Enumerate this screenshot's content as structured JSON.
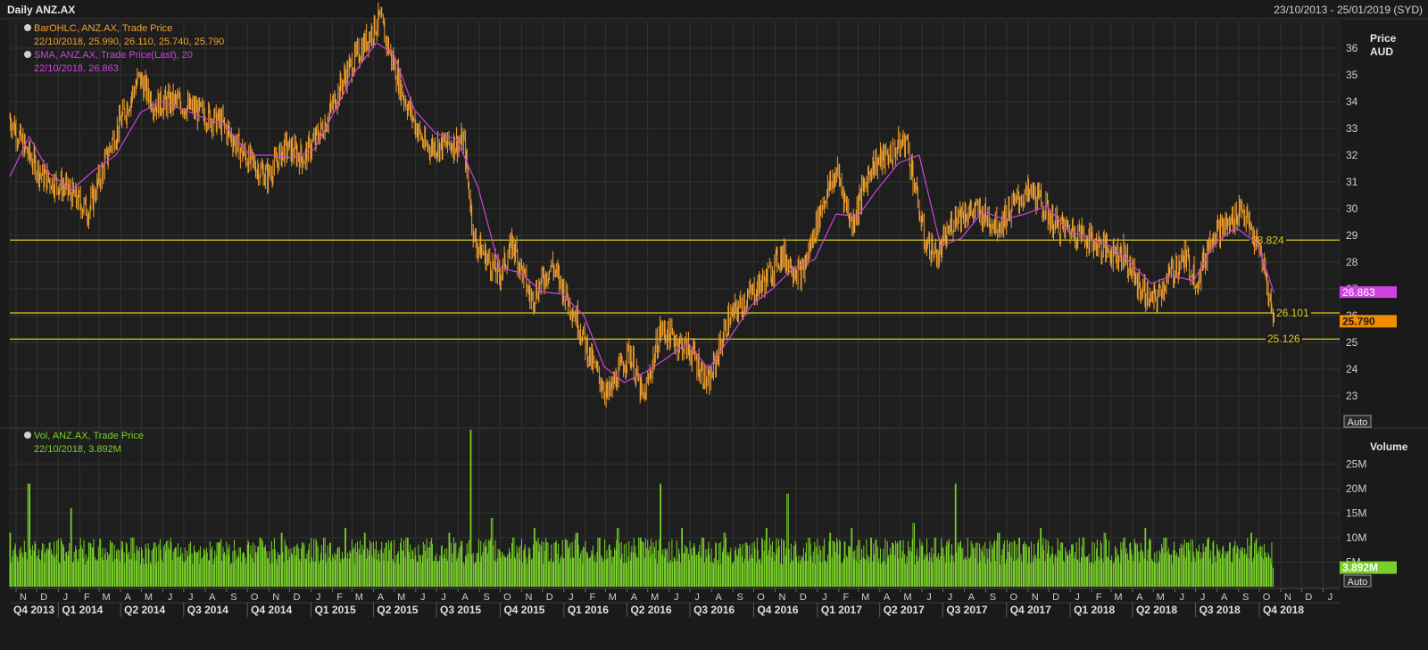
{
  "header": {
    "title": "Daily ANZ.AX",
    "range": "23/10/2013 - 25/01/2019 (SYD)"
  },
  "price_panel": {
    "legend": [
      {
        "name": "BarOHLC, ANZ.AX, Trade Price",
        "value": "22/10/2018, 25.990, 26.110, 25.740, 25.790",
        "color": "#f0a030"
      },
      {
        "name": "SMA, ANZ.AX, Trade Price(Last),  20",
        "value": "22/10/2018, 26.863",
        "color": "#cc44dd"
      }
    ],
    "axis_title": [
      "Price",
      "AUD"
    ],
    "auto_label": "Auto",
    "last_price_tag": {
      "text": "25.790",
      "value": 25.79,
      "color": "#f08c00"
    },
    "sma_tag": {
      "text": "26.863",
      "value": 26.863,
      "color": "#cc44dd"
    },
    "hlines": [
      {
        "value": 28.824,
        "text": "28.824"
      },
      {
        "value": 26.101,
        "text": "26.101"
      },
      {
        "value": 25.126,
        "text": "25.126"
      }
    ]
  },
  "volume_panel": {
    "legend": {
      "name": "Vol, ANZ.AX, Trade Price",
      "value": "22/10/2018, 3.892M",
      "color": "#7ad02a"
    },
    "axis_title": "Volume",
    "auto_label": "Auto",
    "last_volume_tag": {
      "text": "3.892M",
      "value": 3.892,
      "color": "#7ad02a"
    }
  },
  "colors": {
    "background": "#1a1a1a",
    "price_bars": "#f0a030",
    "sma": "#cc44dd",
    "volume": "#7ad02a",
    "hline": "#d8cc20",
    "grid": "#333333",
    "text": "#cfcfcf"
  },
  "chart_data": [
    {
      "type": "line",
      "title": "Daily ANZ.AX",
      "ylabel": "Price AUD",
      "ylim": [
        21.8,
        37.0
      ],
      "yticks": [
        23,
        24,
        25,
        26,
        27,
        28,
        29,
        30,
        31,
        32,
        33,
        34,
        35,
        36
      ],
      "grid": true,
      "series": [
        {
          "name": "BarOHLC, ANZ.AX, Trade Price",
          "style": "ohlc",
          "x": [
            "2013-10-23",
            "2013-11-15",
            "2013-12-10",
            "2014-01-10",
            "2014-02-14",
            "2014-03-20",
            "2014-04-28",
            "2014-05-20",
            "2014-06-20",
            "2014-07-25",
            "2014-08-25",
            "2014-09-30",
            "2014-10-30",
            "2014-11-25",
            "2014-12-22",
            "2015-01-20",
            "2015-02-20",
            "2015-03-20",
            "2015-04-10",
            "2015-05-15",
            "2015-06-15",
            "2015-07-15",
            "2015-08-10",
            "2015-08-25",
            "2015-09-30",
            "2015-10-20",
            "2015-11-15",
            "2015-12-15",
            "2016-01-20",
            "2016-02-10",
            "2016-03-05",
            "2016-04-05",
            "2016-04-25",
            "2016-05-20",
            "2016-06-15",
            "2016-07-05",
            "2016-07-28",
            "2016-08-25",
            "2016-09-20",
            "2016-10-20",
            "2016-11-10",
            "2016-12-10",
            "2017-01-10",
            "2017-01-30",
            "2017-02-20",
            "2017-03-20",
            "2017-04-20",
            "2017-05-10",
            "2017-06-05",
            "2017-06-25",
            "2017-07-20",
            "2017-08-20",
            "2017-09-20",
            "2017-10-20",
            "2017-11-10",
            "2017-12-10",
            "2018-01-15",
            "2018-02-20",
            "2018-03-20",
            "2018-04-10",
            "2018-05-01",
            "2018-05-25",
            "2018-06-15",
            "2018-07-05",
            "2018-07-25",
            "2018-08-20",
            "2018-09-05",
            "2018-09-25",
            "2018-10-05",
            "2018-10-22"
          ],
          "close": [
            33.4,
            32.2,
            31.2,
            30.8,
            29.9,
            32.5,
            34.9,
            33.9,
            34.0,
            33.6,
            33.2,
            31.9,
            31.2,
            32.3,
            31.9,
            33.1,
            35.0,
            36.2,
            37.1,
            34.2,
            32.3,
            32.4,
            32.5,
            28.8,
            27.5,
            28.7,
            26.6,
            27.9,
            25.9,
            24.3,
            23.0,
            24.7,
            22.8,
            25.5,
            25.0,
            24.6,
            23.4,
            25.8,
            26.6,
            27.4,
            28.3,
            27.5,
            30.3,
            31.4,
            29.4,
            31.6,
            32.1,
            32.6,
            28.8,
            28.2,
            29.8,
            29.9,
            29.4,
            30.4,
            30.6,
            29.4,
            29.1,
            28.5,
            28.3,
            27.1,
            26.5,
            27.5,
            28.2,
            27.3,
            29.1,
            29.4,
            30.1,
            28.8,
            28.2,
            25.79
          ]
        },
        {
          "name": "SMA, ANZ.AX, Trade Price(Last),  20",
          "x": [
            "2013-10-23",
            "2013-11-20",
            "2013-12-20",
            "2014-01-20",
            "2014-02-20",
            "2014-03-25",
            "2014-04-30",
            "2014-05-30",
            "2014-06-30",
            "2014-07-30",
            "2014-08-30",
            "2014-10-05",
            "2014-11-05",
            "2014-12-05",
            "2015-01-05",
            "2015-02-05",
            "2015-03-05",
            "2015-04-05",
            "2015-04-30",
            "2015-05-30",
            "2015-06-30",
            "2015-07-30",
            "2015-08-30",
            "2015-09-30",
            "2015-10-30",
            "2015-11-30",
            "2015-12-30",
            "2016-01-30",
            "2016-02-28",
            "2016-03-28",
            "2016-04-28",
            "2016-05-28",
            "2016-06-28",
            "2016-07-28",
            "2016-08-28",
            "2016-09-28",
            "2016-10-28",
            "2016-11-28",
            "2016-12-28",
            "2017-01-28",
            "2017-02-28",
            "2017-03-28",
            "2017-04-28",
            "2017-05-28",
            "2017-06-28",
            "2017-07-28",
            "2017-08-28",
            "2017-09-28",
            "2017-10-28",
            "2017-11-28",
            "2017-12-28",
            "2018-01-28",
            "2018-02-28",
            "2018-03-28",
            "2018-04-28",
            "2018-05-28",
            "2018-06-28",
            "2018-07-28",
            "2018-08-28",
            "2018-09-28",
            "2018-10-22"
          ],
          "values": [
            31.2,
            32.7,
            31.3,
            30.7,
            31.4,
            32.0,
            33.6,
            34.0,
            33.7,
            33.4,
            33.1,
            32.0,
            32.0,
            31.9,
            32.2,
            33.7,
            35.1,
            36.2,
            35.8,
            33.7,
            32.8,
            32.6,
            30.8,
            27.8,
            27.6,
            26.9,
            26.8,
            26.0,
            24.1,
            23.5,
            23.9,
            24.4,
            25.0,
            24.0,
            25.2,
            26.4,
            27.0,
            27.8,
            28.1,
            29.8,
            29.7,
            30.7,
            31.7,
            32.0,
            28.6,
            28.9,
            29.9,
            29.6,
            29.8,
            30.1,
            29.2,
            28.9,
            28.6,
            28.0,
            27.2,
            27.5,
            27.3,
            28.7,
            29.3,
            28.7,
            26.863
          ]
        }
      ]
    },
    {
      "type": "bar",
      "title": "Vol, ANZ.AX, Trade Price",
      "ylabel": "Volume",
      "ylim": [
        0,
        32
      ],
      "yticks": [
        "5M",
        "10M",
        "15M",
        "20M",
        "25M"
      ],
      "ytick_values": [
        5,
        10,
        15,
        20,
        25
      ],
      "grid": true,
      "series": [
        {
          "name": "Vol, ANZ.AX, Trade Price",
          "x": [
            "2013-10-23",
            "2013-11-20",
            "2013-12-20",
            "2014-01-20",
            "2014-02-20",
            "2014-03-20",
            "2014-04-20",
            "2014-05-20",
            "2014-06-20",
            "2014-07-20",
            "2014-08-20",
            "2014-09-20",
            "2014-10-20",
            "2014-11-20",
            "2014-12-20",
            "2015-01-20",
            "2015-02-20",
            "2015-03-20",
            "2015-04-20",
            "2015-05-20",
            "2015-06-20",
            "2015-07-20",
            "2015-08-20",
            "2015-09-20",
            "2015-10-20",
            "2015-11-20",
            "2015-12-20",
            "2016-01-20",
            "2016-02-20",
            "2016-03-20",
            "2016-04-20",
            "2016-05-20",
            "2016-06-20",
            "2016-07-20",
            "2016-08-20",
            "2016-09-20",
            "2016-10-20",
            "2016-11-20",
            "2016-12-20",
            "2017-01-20",
            "2017-02-20",
            "2017-03-20",
            "2017-04-20",
            "2017-05-20",
            "2017-06-20",
            "2017-07-20",
            "2017-08-20",
            "2017-09-20",
            "2017-10-20",
            "2017-11-20",
            "2017-12-20",
            "2018-01-20",
            "2018-02-20",
            "2018-03-20",
            "2018-04-20",
            "2018-05-20",
            "2018-06-20",
            "2018-07-20",
            "2018-08-20",
            "2018-09-20",
            "2018-10-22"
          ],
          "values": [
            11,
            21,
            9,
            16,
            8,
            9,
            10,
            9,
            8,
            7,
            9,
            8,
            10,
            11,
            9,
            10,
            12,
            11,
            9,
            10,
            8,
            11,
            32,
            14,
            10,
            12,
            9,
            11,
            10,
            12,
            10,
            21,
            12,
            10,
            11,
            9,
            12,
            19,
            10,
            11,
            12,
            10,
            9,
            13,
            10,
            21,
            9,
            11,
            10,
            12,
            9,
            10,
            11,
            10,
            12,
            10,
            9,
            10,
            9,
            11,
            3.892
          ]
        }
      ]
    }
  ],
  "x_axis": {
    "month_ticks": [
      {
        "date": "2013-11-01",
        "label": "N"
      },
      {
        "date": "2013-12-01",
        "label": "D"
      },
      {
        "date": "2014-01-01",
        "label": "J"
      },
      {
        "date": "2014-02-01",
        "label": "F"
      },
      {
        "date": "2014-03-01",
        "label": "M"
      },
      {
        "date": "2014-04-01",
        "label": "A"
      },
      {
        "date": "2014-05-01",
        "label": "M"
      },
      {
        "date": "2014-06-01",
        "label": "J"
      },
      {
        "date": "2014-07-01",
        "label": "J"
      },
      {
        "date": "2014-08-01",
        "label": "A"
      },
      {
        "date": "2014-09-01",
        "label": "S"
      },
      {
        "date": "2014-10-01",
        "label": "O"
      },
      {
        "date": "2014-11-01",
        "label": "N"
      },
      {
        "date": "2014-12-01",
        "label": "D"
      },
      {
        "date": "2015-01-01",
        "label": "J"
      },
      {
        "date": "2015-02-01",
        "label": "F"
      },
      {
        "date": "2015-03-01",
        "label": "M"
      },
      {
        "date": "2015-04-01",
        "label": "A"
      },
      {
        "date": "2015-05-01",
        "label": "M"
      },
      {
        "date": "2015-06-01",
        "label": "J"
      },
      {
        "date": "2015-07-01",
        "label": "J"
      },
      {
        "date": "2015-08-01",
        "label": "A"
      },
      {
        "date": "2015-09-01",
        "label": "S"
      },
      {
        "date": "2015-10-01",
        "label": "O"
      },
      {
        "date": "2015-11-01",
        "label": "N"
      },
      {
        "date": "2015-12-01",
        "label": "D"
      },
      {
        "date": "2016-01-01",
        "label": "J"
      },
      {
        "date": "2016-02-01",
        "label": "F"
      },
      {
        "date": "2016-03-01",
        "label": "M"
      },
      {
        "date": "2016-04-01",
        "label": "A"
      },
      {
        "date": "2016-05-01",
        "label": "M"
      },
      {
        "date": "2016-06-01",
        "label": "J"
      },
      {
        "date": "2016-07-01",
        "label": "J"
      },
      {
        "date": "2016-08-01",
        "label": "A"
      },
      {
        "date": "2016-09-01",
        "label": "S"
      },
      {
        "date": "2016-10-01",
        "label": "O"
      },
      {
        "date": "2016-11-01",
        "label": "N"
      },
      {
        "date": "2016-12-01",
        "label": "D"
      },
      {
        "date": "2017-01-01",
        "label": "J"
      },
      {
        "date": "2017-02-01",
        "label": "F"
      },
      {
        "date": "2017-03-01",
        "label": "M"
      },
      {
        "date": "2017-04-01",
        "label": "A"
      },
      {
        "date": "2017-05-01",
        "label": "M"
      },
      {
        "date": "2017-06-01",
        "label": "J"
      },
      {
        "date": "2017-07-01",
        "label": "J"
      },
      {
        "date": "2017-08-01",
        "label": "A"
      },
      {
        "date": "2017-09-01",
        "label": "S"
      },
      {
        "date": "2017-10-01",
        "label": "O"
      },
      {
        "date": "2017-11-01",
        "label": "N"
      },
      {
        "date": "2017-12-01",
        "label": "D"
      },
      {
        "date": "2018-01-01",
        "label": "J"
      },
      {
        "date": "2018-02-01",
        "label": "F"
      },
      {
        "date": "2018-03-01",
        "label": "M"
      },
      {
        "date": "2018-04-01",
        "label": "A"
      },
      {
        "date": "2018-05-01",
        "label": "M"
      },
      {
        "date": "2018-06-01",
        "label": "J"
      },
      {
        "date": "2018-07-01",
        "label": "J"
      },
      {
        "date": "2018-08-01",
        "label": "A"
      },
      {
        "date": "2018-09-01",
        "label": "S"
      },
      {
        "date": "2018-10-01",
        "label": "O"
      },
      {
        "date": "2018-11-01",
        "label": "N"
      },
      {
        "date": "2018-12-01",
        "label": "D"
      },
      {
        "date": "2019-01-01",
        "label": "J"
      }
    ],
    "quarter_labels": [
      {
        "start": "2013-10-01",
        "label": "Q4 2013"
      },
      {
        "start": "2014-01-01",
        "label": "Q1 2014"
      },
      {
        "start": "2014-04-01",
        "label": "Q2 2014"
      },
      {
        "start": "2014-07-01",
        "label": "Q3 2014"
      },
      {
        "start": "2014-10-01",
        "label": "Q4 2014"
      },
      {
        "start": "2015-01-01",
        "label": "Q1 2015"
      },
      {
        "start": "2015-04-01",
        "label": "Q2 2015"
      },
      {
        "start": "2015-07-01",
        "label": "Q3 2015"
      },
      {
        "start": "2015-10-01",
        "label": "Q4 2015"
      },
      {
        "start": "2016-01-01",
        "label": "Q1 2016"
      },
      {
        "start": "2016-04-01",
        "label": "Q2 2016"
      },
      {
        "start": "2016-07-01",
        "label": "Q3 2016"
      },
      {
        "start": "2016-10-01",
        "label": "Q4 2016"
      },
      {
        "start": "2017-01-01",
        "label": "Q1 2017"
      },
      {
        "start": "2017-04-01",
        "label": "Q2 2017"
      },
      {
        "start": "2017-07-01",
        "label": "Q3 2017"
      },
      {
        "start": "2017-10-01",
        "label": "Q4 2017"
      },
      {
        "start": "2018-01-01",
        "label": "Q1 2018"
      },
      {
        "start": "2018-04-01",
        "label": "Q2 2018"
      },
      {
        "start": "2018-07-01",
        "label": "Q3 2018"
      },
      {
        "start": "2018-10-01",
        "label": "Q4 2018"
      }
    ]
  }
}
